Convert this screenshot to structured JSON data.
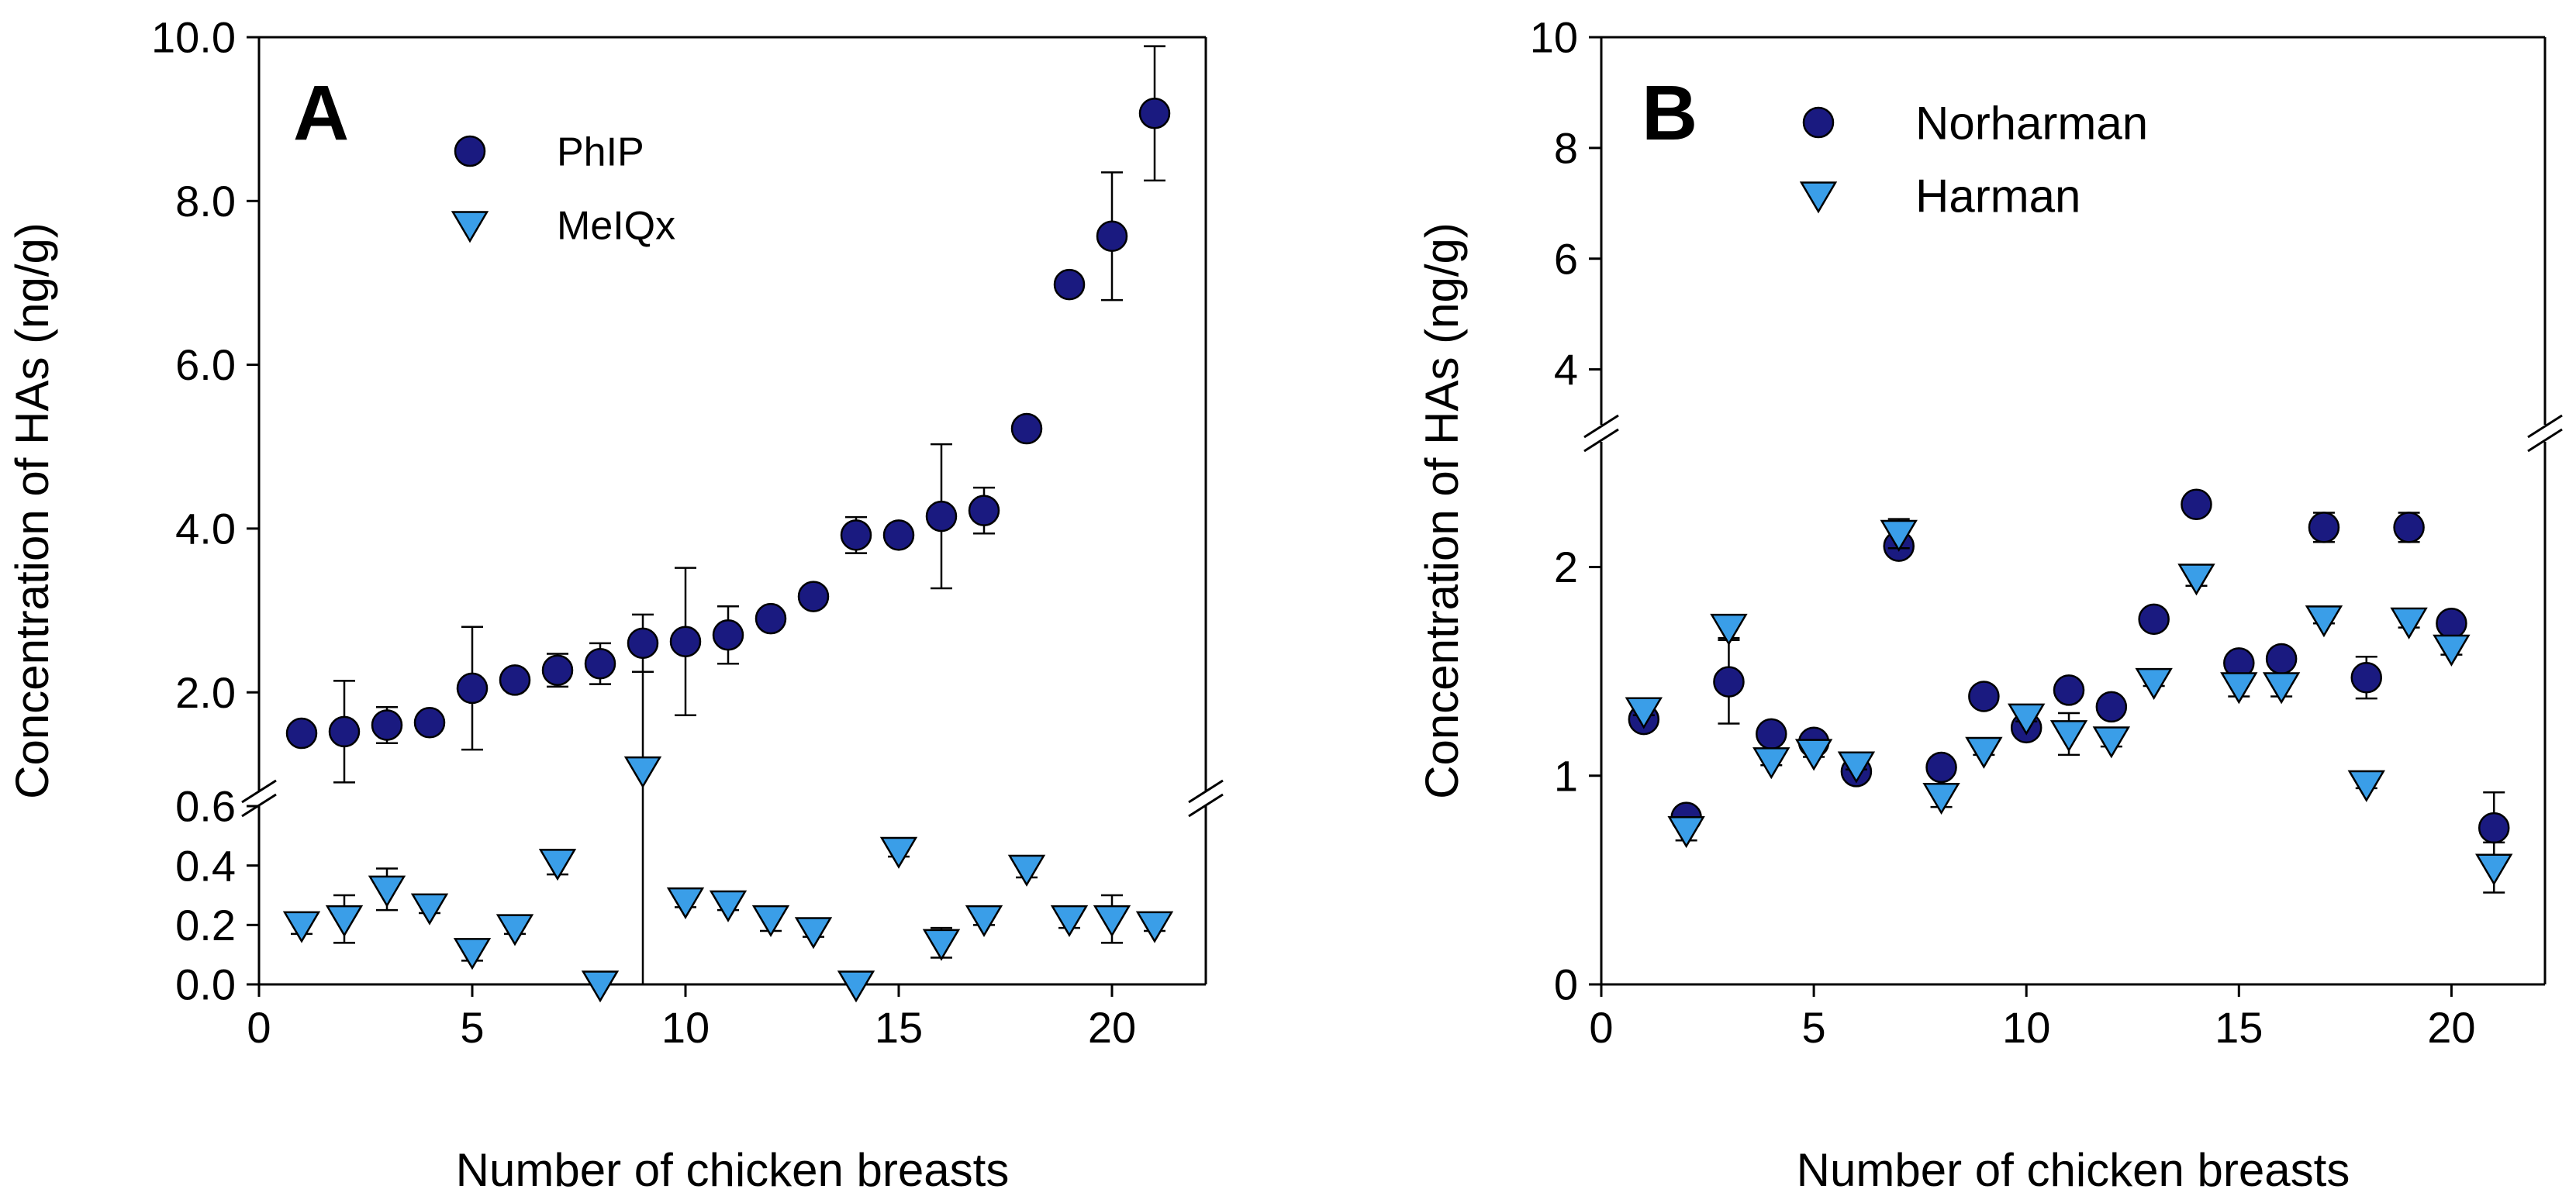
{
  "chart_data": [
    {
      "panel_label": "A",
      "type": "scatter",
      "xlabel": "Number of chicken breasts",
      "ylabel": "Concentration of HAs (ng/g)",
      "xlim": [
        0,
        22.2
      ],
      "x_ticks": [
        0,
        5,
        10,
        15,
        20
      ],
      "x_tick_labels": [
        "0",
        "5",
        "10",
        "15",
        "20"
      ],
      "y_axis_break": true,
      "y_lower_range": [
        0,
        0.6
      ],
      "y_upper_range": [
        0.8,
        10.0
      ],
      "y_lower_ticks": [
        0,
        0.2,
        0.4,
        0.6
      ],
      "y_lower_tick_labels": [
        "0.0",
        "0.2",
        "0.4",
        "0.6"
      ],
      "y_upper_ticks": [
        2,
        4,
        6,
        8,
        10
      ],
      "y_upper_tick_labels": [
        "2.0",
        "4.0",
        "6.0",
        "8.0",
        "10.0"
      ],
      "grid": false,
      "legend_position": "top-left",
      "series": [
        {
          "name": "PhIP",
          "marker": "circle",
          "color": "#1a1a80",
          "x": [
            1,
            2,
            3,
            4,
            5,
            6,
            7,
            8,
            9,
            10,
            11,
            12,
            13,
            14,
            15,
            16,
            17,
            18,
            19,
            20,
            21
          ],
          "y": [
            1.5,
            1.52,
            1.6,
            1.63,
            2.05,
            2.15,
            2.27,
            2.35,
            2.6,
            2.62,
            2.7,
            2.9,
            3.17,
            3.92,
            3.92,
            4.15,
            4.22,
            5.22,
            6.98,
            7.57,
            9.07
          ],
          "err": [
            0.05,
            0.62,
            0.22,
            0.05,
            0.75,
            0.1,
            0.2,
            0.25,
            0.35,
            0.9,
            0.35,
            0.12,
            0.07,
            0.22,
            0.05,
            0.88,
            0.28,
            0.08,
            0.08,
            0.78,
            0.82
          ]
        },
        {
          "name": "MeIQx",
          "marker": "triangle-down",
          "color": "#3a9ee8",
          "x": [
            1,
            2,
            3,
            4,
            5,
            6,
            7,
            8,
            9,
            10,
            11,
            12,
            13,
            14,
            15,
            16,
            17,
            18,
            19,
            20,
            21
          ],
          "y": [
            0.2,
            0.22,
            0.32,
            0.26,
            0.11,
            0.19,
            0.41,
            0.0,
            1.05,
            0.28,
            0.27,
            0.22,
            0.18,
            0.0,
            0.45,
            0.14,
            0.22,
            0.39,
            0.22,
            0.22,
            0.2
          ],
          "err": [
            0.03,
            0.08,
            0.07,
            0.02,
            0.03,
            0.02,
            0.04,
            0.0,
            1.2,
            0.02,
            0.02,
            0.04,
            0.02,
            0.0,
            0.02,
            0.05,
            0.02,
            0.03,
            0.03,
            0.08,
            0.02
          ]
        }
      ]
    },
    {
      "panel_label": "B",
      "type": "scatter",
      "xlabel": "Number of chicken breasts",
      "ylabel": "Concentration of HAs (ng/g)",
      "xlim": [
        0,
        22.2
      ],
      "x_ticks": [
        0,
        5,
        10,
        15,
        20
      ],
      "x_tick_labels": [
        "0",
        "5",
        "10",
        "15",
        "20"
      ],
      "y_axis_break": true,
      "y_lower_range": [
        0,
        2.6
      ],
      "y_upper_range": [
        3,
        10
      ],
      "y_lower_ticks": [
        0,
        1,
        2
      ],
      "y_lower_tick_labels": [
        "0",
        "1",
        "2"
      ],
      "y_upper_ticks": [
        4,
        6,
        8,
        10
      ],
      "y_upper_tick_labels": [
        "4",
        "6",
        "8",
        "10"
      ],
      "grid": false,
      "legend_position": "top-left",
      "series": [
        {
          "name": "Norharman",
          "marker": "circle",
          "color": "#1a1a80",
          "x": [
            1,
            2,
            3,
            4,
            5,
            6,
            7,
            8,
            9,
            10,
            11,
            12,
            13,
            14,
            15,
            16,
            17,
            18,
            19,
            20,
            21
          ],
          "y": [
            1.27,
            0.8,
            1.45,
            1.2,
            1.16,
            1.02,
            2.1,
            1.04,
            1.38,
            1.23,
            1.41,
            1.33,
            1.75,
            2.3,
            1.54,
            1.56,
            2.19,
            1.47,
            2.19,
            1.73,
            0.75
          ],
          "err": [
            0.02,
            0.04,
            0.2,
            0.02,
            0.02,
            0.02,
            0.05,
            0.03,
            0.02,
            0.02,
            0.02,
            0.02,
            0.02,
            0.02,
            0.02,
            0.02,
            0.07,
            0.1,
            0.07,
            0.02,
            0.17
          ]
        },
        {
          "name": "Harman",
          "marker": "triangle-down",
          "color": "#3a9ee8",
          "x": [
            1,
            2,
            3,
            4,
            5,
            6,
            7,
            8,
            9,
            10,
            11,
            12,
            13,
            14,
            15,
            16,
            17,
            18,
            19,
            20,
            21
          ],
          "y": [
            1.31,
            0.74,
            1.71,
            1.07,
            1.11,
            1.05,
            2.16,
            0.9,
            1.12,
            1.28,
            1.2,
            1.17,
            1.45,
            1.95,
            1.43,
            1.43,
            1.75,
            0.96,
            1.74,
            1.61,
            0.56
          ],
          "err": [
            0.02,
            0.05,
            0.05,
            0.02,
            0.02,
            0.02,
            0.07,
            0.05,
            0.02,
            0.02,
            0.1,
            0.03,
            0.02,
            0.04,
            0.05,
            0.05,
            0.02,
            0.02,
            0.03,
            0.03,
            0.12
          ]
        }
      ]
    }
  ]
}
